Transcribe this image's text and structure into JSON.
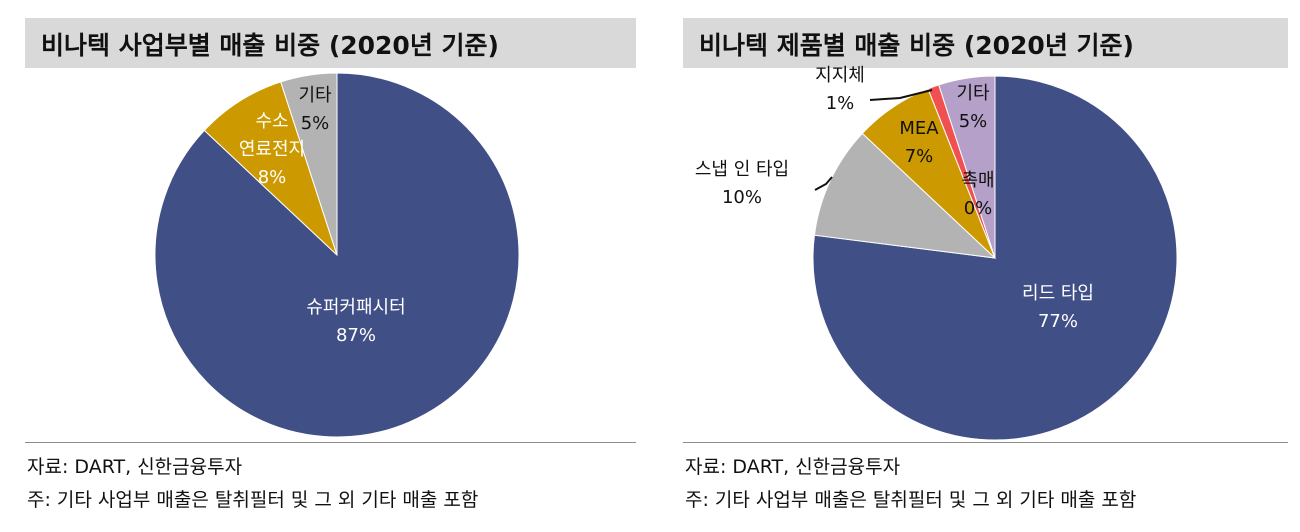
{
  "chart_data": [
    {
      "type": "pie",
      "title": "비나텍 사업부별 매출 비중 (2020년 기준)",
      "slices": [
        {
          "label": "슈퍼커패시터",
          "value": 87,
          "value_label": "87%",
          "color": "#414f87"
        },
        {
          "label": "수소\n연료전지",
          "value": 8,
          "value_label": "8%",
          "color": "#cc9a00"
        },
        {
          "label": "기타",
          "value": 5,
          "value_label": "5%",
          "color": "#b3b3b3"
        }
      ],
      "notes": {
        "source": "자료: DART, 신한금융투자",
        "footnote": "주: 기타 사업부 매출은 탈취필터 및 그 외 기타 매출 포함"
      }
    },
    {
      "type": "pie",
      "title": "비나텍 제품별 매출 비중 (2020년 기준)",
      "slices": [
        {
          "label": "리드 타입",
          "value": 77,
          "value_label": "77%",
          "color": "#414f87"
        },
        {
          "label": "스냅 인 타입",
          "value": 10,
          "value_label": "10%",
          "color": "#b3b3b3"
        },
        {
          "label": "MEA",
          "value": 7,
          "value_label": "7%",
          "color": "#cc9a00"
        },
        {
          "label": "촉매",
          "value": 0,
          "value_label": "0%",
          "color": "#cc9a00"
        },
        {
          "label": "지지체",
          "value": 1,
          "value_label": "1%",
          "color": "#f05050"
        },
        {
          "label": "기타",
          "value": 5,
          "value_label": "5%",
          "color": "#b4a0c8"
        }
      ],
      "notes": {
        "source": "자료: DART, 신한금융투자",
        "footnote": "주: 기타 사업부 매출은 탈취필터 및 그 외 기타 매출 포함"
      }
    }
  ]
}
